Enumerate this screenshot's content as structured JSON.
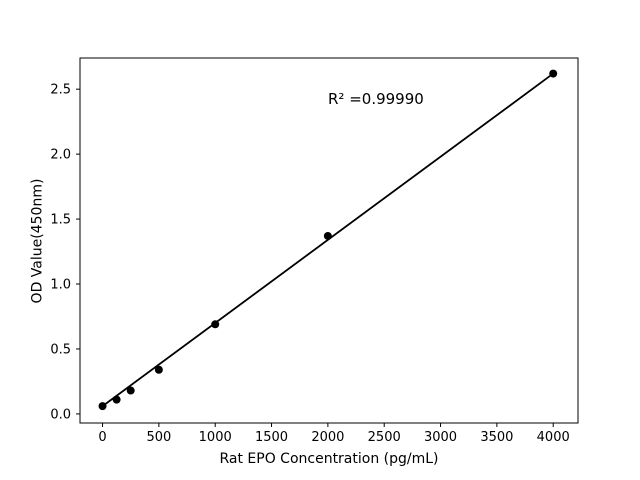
{
  "chart_data": {
    "type": "scatter",
    "title": "",
    "xlabel": "Rat EPO Concentration (pg/mL)",
    "ylabel": "OD Value(450nm)",
    "annotation": "R² =0.99990",
    "x": [
      0,
      125,
      250,
      500,
      1000,
      2000,
      4000
    ],
    "y": [
      0.06,
      0.11,
      0.18,
      0.34,
      0.69,
      1.37,
      2.62
    ],
    "trendline": {
      "x1": 0,
      "y1": 0.06,
      "x2": 4000,
      "y2": 2.62
    },
    "xticks": [
      0,
      500,
      1000,
      1500,
      2000,
      2500,
      3000,
      3500,
      4000
    ],
    "xtick_labels": [
      "0",
      "500",
      "1000",
      "1500",
      "2000",
      "2500",
      "3000",
      "3500",
      "4000"
    ],
    "yticks": [
      0.0,
      0.5,
      1.0,
      1.5,
      2.0,
      2.5
    ],
    "ytick_labels": [
      "0.0",
      "0.5",
      "1.0",
      "1.5",
      "2.0",
      "2.5"
    ],
    "xlim": [
      -200,
      4220
    ],
    "ylim": [
      -0.07,
      2.74
    ],
    "grid": false,
    "legend": "none",
    "marker_color": "#000000",
    "line_color": "#000000",
    "axis_color": "#000000",
    "background_color": "#ffffff"
  }
}
